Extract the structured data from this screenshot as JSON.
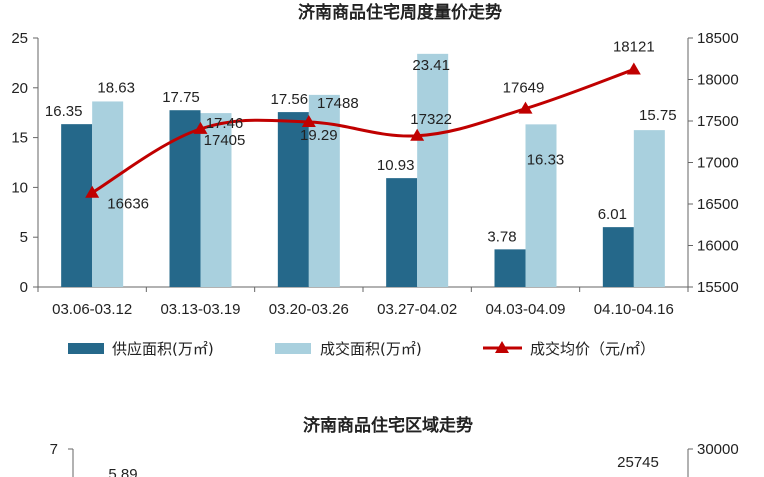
{
  "chart_data": [
    {
      "type": "bar",
      "title": "济南商品住宅周度量价走势",
      "categories": [
        "03.06-03.12",
        "03.13-03.19",
        "03.20-03.26",
        "03.27-04.02",
        "04.03-04.09",
        "04.10-04.16"
      ],
      "series": [
        {
          "name": "供应面积(万㎡)",
          "type": "bar",
          "axis": "left",
          "color": "#25688a",
          "values": [
            16.35,
            17.75,
            17.56,
            10.93,
            3.78,
            6.01
          ]
        },
        {
          "name": "成交面积(万㎡)",
          "type": "bar",
          "axis": "left",
          "color": "#a9d0de",
          "values": [
            18.63,
            17.46,
            19.29,
            23.41,
            16.33,
            15.75
          ]
        },
        {
          "name": "成交均价（元/㎡）",
          "type": "line",
          "axis": "right",
          "color": "#c00000",
          "values": [
            16636,
            17405,
            17488,
            17322,
            17649,
            18121
          ]
        }
      ],
      "ylim_left": [
        0,
        25
      ],
      "yticks_left": [
        "0",
        "5",
        "10",
        "15",
        "20",
        "25"
      ],
      "ylim_right": [
        15500,
        18500
      ],
      "yticks_right": [
        "15500",
        "16000",
        "16500",
        "17000",
        "17500",
        "18000",
        "18500"
      ],
      "legend_position": "bottom",
      "grid": false
    },
    {
      "type": "bar",
      "title": "济南商品住宅区域走势",
      "partial": true,
      "visible_tick_left": "7",
      "visible_tick_right": "30000",
      "visible_labels": [
        "5.89",
        "25745"
      ]
    }
  ]
}
